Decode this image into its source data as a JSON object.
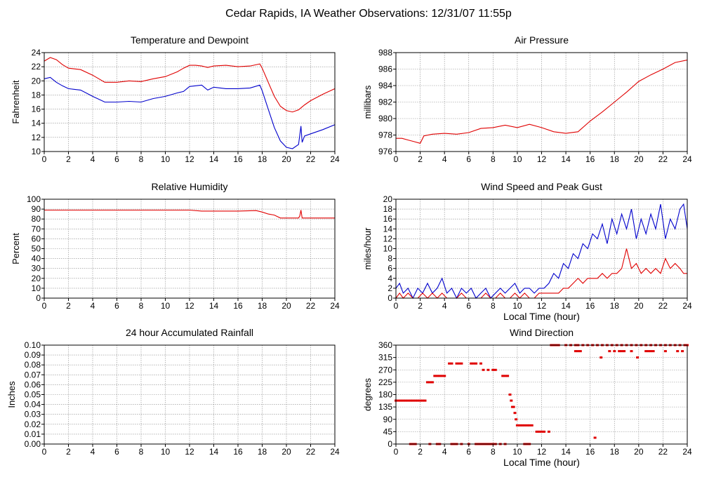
{
  "page": {
    "title": "Cedar Rapids, IA Weather Observations: 12/31/07 11:55p"
  },
  "colors": {
    "red": "#e00000",
    "blue": "#0000cc",
    "grid": "#8a8a8a",
    "frame": "#000000"
  },
  "chart_data": [
    {
      "id": "temperature",
      "type": "line",
      "title": "Temperature and Dewpoint",
      "ylabel": "Fahrenheit",
      "xlabel": "",
      "xlim": [
        0,
        24
      ],
      "ylim": [
        10,
        24
      ],
      "xticks": [
        0,
        2,
        4,
        6,
        8,
        10,
        12,
        14,
        16,
        18,
        20,
        22,
        24
      ],
      "yticks": [
        10,
        12,
        14,
        16,
        18,
        20,
        22,
        24
      ],
      "grid": true,
      "series": [
        {
          "color": "red",
          "x": [
            0,
            0.5,
            1,
            1.5,
            2,
            3,
            4,
            5,
            6,
            7,
            8,
            9,
            10,
            11,
            11.5,
            12,
            12.5,
            13,
            13.5,
            14,
            15,
            16,
            17,
            17.8,
            18,
            18.5,
            19,
            19.5,
            20,
            20.5,
            21,
            21.5,
            22,
            23,
            24
          ],
          "y": [
            22.8,
            23.3,
            23.0,
            22.3,
            21.8,
            21.6,
            20.8,
            19.8,
            19.8,
            20.0,
            19.9,
            20.3,
            20.6,
            21.3,
            21.8,
            22.2,
            22.2,
            22.1,
            21.9,
            22.1,
            22.2,
            22.0,
            22.1,
            22.4,
            21.8,
            19.8,
            17.8,
            16.4,
            15.8,
            15.6,
            15.9,
            16.6,
            17.2,
            18.1,
            18.9
          ]
        },
        {
          "color": "blue",
          "x": [
            0,
            0.5,
            1,
            1.5,
            2,
            3,
            4,
            5,
            6,
            7,
            8,
            9,
            10,
            11,
            11.5,
            12,
            12.5,
            13,
            13.5,
            14,
            15,
            16,
            17,
            17.8,
            18,
            18.5,
            19,
            19.5,
            20,
            20.5,
            21,
            21.2,
            21.3,
            21.5,
            22,
            23,
            24
          ],
          "y": [
            20.3,
            20.5,
            19.8,
            19.3,
            18.9,
            18.7,
            17.8,
            17.0,
            17.0,
            17.1,
            17.0,
            17.5,
            17.8,
            18.3,
            18.5,
            19.2,
            19.3,
            19.4,
            18.7,
            19.1,
            18.9,
            18.9,
            19.0,
            19.4,
            18.6,
            16.0,
            13.4,
            11.5,
            10.6,
            10.4,
            11.0,
            13.6,
            11.3,
            12.2,
            12.5,
            13.1,
            13.8
          ]
        }
      ]
    },
    {
      "id": "pressure",
      "type": "line",
      "title": "Air Pressure",
      "ylabel": "millibars",
      "xlabel": "",
      "xlim": [
        0,
        24
      ],
      "ylim": [
        976,
        988
      ],
      "xticks": [
        0,
        2,
        4,
        6,
        8,
        10,
        12,
        14,
        16,
        18,
        20,
        22,
        24
      ],
      "yticks": [
        976,
        978,
        980,
        982,
        984,
        986,
        988
      ],
      "grid": true,
      "series": [
        {
          "color": "red",
          "x": [
            0,
            0.5,
            1,
            1.5,
            2,
            2.3,
            3,
            4,
            5,
            6,
            7,
            8,
            9,
            10,
            11,
            12,
            13,
            14,
            15,
            16,
            17,
            18,
            19,
            20,
            21,
            22,
            23,
            24
          ],
          "y": [
            977.6,
            977.6,
            977.4,
            977.2,
            977.0,
            977.9,
            978.1,
            978.2,
            978.1,
            978.3,
            978.8,
            978.9,
            979.2,
            978.9,
            979.3,
            978.9,
            978.4,
            978.2,
            978.4,
            979.7,
            980.8,
            982.0,
            983.2,
            984.5,
            985.3,
            986.0,
            986.8,
            987.1
          ]
        }
      ]
    },
    {
      "id": "humidity",
      "type": "line",
      "title": "Relative Humidity",
      "ylabel": "Percent",
      "xlabel": "",
      "xlim": [
        0,
        24
      ],
      "ylim": [
        0,
        100
      ],
      "xticks": [
        0,
        2,
        4,
        6,
        8,
        10,
        12,
        14,
        16,
        18,
        20,
        22,
        24
      ],
      "yticks": [
        0,
        10,
        20,
        30,
        40,
        50,
        60,
        70,
        80,
        90,
        100
      ],
      "grid": true,
      "series": [
        {
          "color": "red",
          "x": [
            0,
            12,
            13,
            16,
            17.5,
            18,
            18.5,
            19,
            19.5,
            20,
            21,
            21.1,
            21.2,
            21.3,
            21.5,
            22,
            24
          ],
          "y": [
            89,
            89,
            88,
            88,
            88.5,
            87,
            85,
            84,
            81,
            81,
            81,
            83,
            89,
            81,
            81,
            81,
            81
          ]
        }
      ]
    },
    {
      "id": "wind_speed",
      "type": "line",
      "title": "Wind Speed and Peak Gust",
      "ylabel": "miles/hour",
      "xlabel": "Local Time (hour)",
      "xlim": [
        0,
        24
      ],
      "ylim": [
        0,
        20
      ],
      "xticks": [
        0,
        2,
        4,
        6,
        8,
        10,
        12,
        14,
        16,
        18,
        20,
        22,
        24
      ],
      "yticks": [
        0,
        2,
        4,
        6,
        8,
        10,
        12,
        14,
        16,
        18,
        20
      ],
      "grid": true,
      "series": [
        {
          "color": "blue",
          "x": [
            0,
            0.3,
            0.6,
            1,
            1.4,
            1.8,
            2.2,
            2.6,
            3,
            3.4,
            3.8,
            4.2,
            4.6,
            5,
            5.4,
            5.8,
            6.2,
            6.6,
            7,
            7.4,
            7.8,
            8.2,
            8.6,
            9,
            9.4,
            9.8,
            10.2,
            10.6,
            11,
            11.4,
            11.8,
            12.2,
            12.6,
            13,
            13.4,
            13.8,
            14.2,
            14.6,
            15,
            15.4,
            15.8,
            16.2,
            16.6,
            17,
            17.4,
            17.8,
            18.2,
            18.6,
            19,
            19.4,
            19.8,
            20.2,
            20.6,
            21,
            21.4,
            21.8,
            22.2,
            22.6,
            23,
            23.4,
            23.7,
            24
          ],
          "y": [
            2,
            3,
            1,
            2,
            0,
            2,
            1,
            3,
            1,
            2,
            4,
            1,
            2,
            0,
            2,
            1,
            2,
            0,
            1,
            2,
            0,
            1,
            2,
            1,
            2,
            3,
            1,
            2,
            2,
            1,
            2,
            2,
            3,
            5,
            4,
            7,
            6,
            9,
            8,
            11,
            10,
            13,
            12,
            15,
            11,
            16,
            13,
            17,
            14,
            18,
            12,
            16,
            13,
            17,
            14,
            19,
            12,
            16,
            14,
            18,
            19,
            14
          ]
        },
        {
          "color": "red",
          "x": [
            0,
            0.3,
            0.6,
            1,
            1.4,
            1.8,
            2.2,
            2.6,
            3,
            3.4,
            3.8,
            4.2,
            4.6,
            5,
            5.4,
            5.8,
            6.2,
            6.6,
            7,
            7.4,
            7.8,
            8.2,
            8.6,
            9,
            9.4,
            9.8,
            10.2,
            10.6,
            11,
            11.4,
            11.8,
            12.2,
            12.6,
            13,
            13.4,
            13.8,
            14.2,
            14.6,
            15,
            15.4,
            15.8,
            16.2,
            16.6,
            17,
            17.4,
            17.8,
            18.2,
            18.6,
            19,
            19.4,
            19.8,
            20.2,
            20.6,
            21,
            21.4,
            21.8,
            22.2,
            22.6,
            23,
            23.4,
            23.7,
            24
          ],
          "y": [
            0,
            1,
            0,
            1,
            0,
            0,
            1,
            0,
            1,
            0,
            1,
            0,
            0,
            0,
            1,
            0,
            0,
            0,
            0,
            1,
            0,
            0,
            1,
            0,
            0,
            1,
            0,
            1,
            0,
            0,
            1,
            1,
            1,
            1,
            1,
            2,
            2,
            3,
            4,
            3,
            4,
            4,
            4,
            5,
            4,
            5,
            5,
            6,
            10,
            6,
            7,
            5,
            6,
            5,
            6,
            5,
            8,
            6,
            7,
            6,
            5,
            5
          ]
        }
      ]
    },
    {
      "id": "rainfall",
      "type": "line",
      "title": "24 hour Accumulated Rainfall",
      "ylabel": "Inches",
      "xlabel": "",
      "xlim": [
        0,
        24
      ],
      "ylim": [
        0,
        0.1
      ],
      "xticks": [
        0,
        2,
        4,
        6,
        8,
        10,
        12,
        14,
        16,
        18,
        20,
        22,
        24
      ],
      "yticks": [
        "0.00",
        "0.01",
        "0.02",
        "0.03",
        "0.04",
        "0.05",
        "0.06",
        "0.07",
        "0.08",
        "0.09",
        "0.10"
      ],
      "grid": true,
      "series": [
        {
          "color": "red",
          "x": [
            0,
            24
          ],
          "y": [
            0,
            0
          ]
        }
      ]
    },
    {
      "id": "wind_direction",
      "type": "scatter",
      "title": "Wind Direction",
      "ylabel": "degrees",
      "xlabel": "Local Time (hour)",
      "xlim": [
        0,
        24
      ],
      "ylim": [
        0,
        360
      ],
      "xticks": [
        0,
        2,
        4,
        6,
        8,
        10,
        12,
        14,
        16,
        18,
        20,
        22,
        24
      ],
      "yticks": [
        0,
        45,
        90,
        135,
        180,
        225,
        270,
        315,
        360
      ],
      "grid": true,
      "series": [
        {
          "color": "red",
          "x": [
            0,
            0.2,
            0.4,
            0.6,
            0.8,
            1.0,
            1.2,
            1.4,
            1.6,
            1.8,
            2.0,
            2.2,
            2.4,
            2.6,
            2.8,
            3.0,
            3.2,
            3.4,
            3.6,
            3.8,
            4.0,
            4.4,
            4.6,
            5.0,
            5.2,
            5.4,
            6.2,
            6.4,
            6.6,
            7.0,
            7.2,
            7.6,
            8.0,
            8.2,
            8.8,
            9.0,
            9.2,
            1.2,
            1.4,
            1.6,
            2.8,
            3.4,
            3.6,
            4.6,
            4.8,
            5.0,
            5.4,
            6.0,
            6.6,
            6.8,
            7.0,
            7.2,
            7.4,
            7.6,
            7.8,
            8.0,
            8.2,
            8.6,
            9.0,
            9.4,
            9.5,
            9.6,
            9.7,
            9.8,
            9.9,
            10.0,
            10.2,
            10.4,
            10.6,
            10.8,
            11.0,
            11.2,
            11.6,
            11.8,
            12.0,
            12.2,
            12.6,
            10.6,
            10.8,
            11.0,
            12.8,
            13.0,
            13.2,
            13.4,
            14.0,
            14.4,
            14.8,
            15.0,
            15.4,
            15.8,
            16.2,
            16.6,
            17.0,
            17.4,
            17.8,
            18.2,
            18.6,
            19.0,
            19.4,
            19.8,
            20.2,
            20.6,
            21.0,
            21.4,
            21.8,
            22.2,
            22.6,
            23.0,
            23.4,
            23.8,
            24.0,
            14.8,
            15.0,
            15.2,
            17.6,
            18.0,
            18.4,
            18.6,
            18.8,
            19.4,
            20.6,
            20.8,
            21.0,
            21.2,
            22.2,
            23.2,
            23.6,
            16.9,
            19.9,
            16.4
          ],
          "y": [
            158,
            158,
            158,
            158,
            158,
            158,
            158,
            158,
            158,
            158,
            158,
            158,
            158,
            225,
            225,
            225,
            248,
            248,
            248,
            248,
            248,
            293,
            293,
            293,
            293,
            293,
            293,
            293,
            293,
            293,
            270,
            270,
            270,
            270,
            248,
            248,
            248,
            0,
            0,
            0,
            0,
            0,
            0,
            0,
            0,
            0,
            0,
            0,
            0,
            0,
            0,
            0,
            0,
            0,
            0,
            0,
            0,
            0,
            0,
            180,
            158,
            135,
            135,
            113,
            90,
            68,
            68,
            68,
            68,
            68,
            68,
            68,
            45,
            45,
            45,
            45,
            45,
            0,
            0,
            0,
            360,
            360,
            360,
            360,
            360,
            360,
            360,
            360,
            360,
            360,
            360,
            360,
            360,
            360,
            360,
            360,
            360,
            360,
            360,
            360,
            360,
            360,
            360,
            360,
            360,
            360,
            360,
            360,
            360,
            360,
            360,
            338,
            338,
            338,
            338,
            338,
            338,
            338,
            338,
            338,
            338,
            338,
            338,
            338,
            338,
            338,
            338,
            315,
            315,
            23
          ]
        }
      ]
    }
  ]
}
